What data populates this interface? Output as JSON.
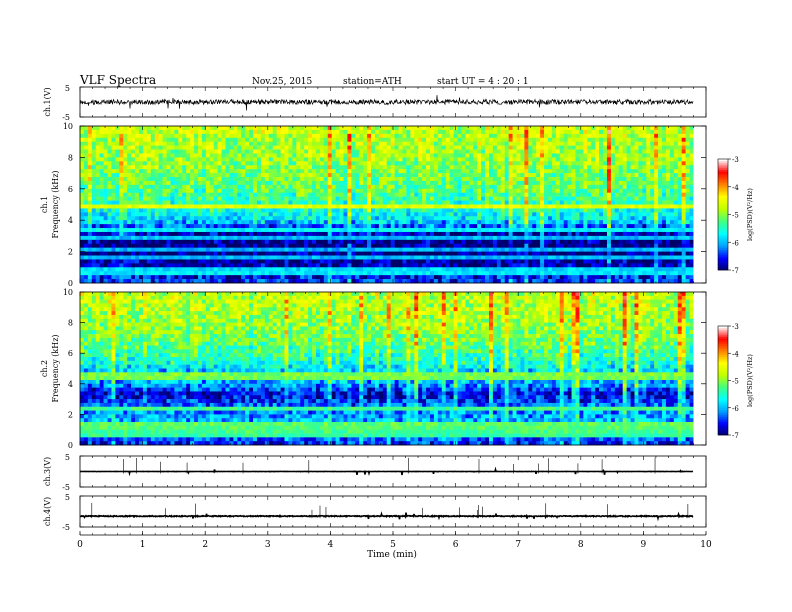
{
  "header": {
    "title": "VLF  Spectra",
    "date": "Nov.25, 2015",
    "station": "station=ATH",
    "start": "start  UT  =   4  : 20 : 1"
  },
  "chart_data": [
    {
      "type": "line",
      "panel": "ch1-waveform",
      "ylabel": "ch.1(V)",
      "ylim": [
        -5,
        5
      ],
      "y_ticks": [
        "5",
        "-5"
      ],
      "x_range_min": [
        0,
        9.8
      ],
      "baseline": 0,
      "noise_amplitude": 0.8
    },
    {
      "type": "heatmap",
      "panel": "ch1-spectrogram",
      "ylabel_channel": "ch.1",
      "ylabel": "Frequency  (kHz)",
      "ylim": [
        0,
        10
      ],
      "y_ticks": [
        "0",
        "2",
        "4",
        "6",
        "8",
        "10"
      ],
      "color_scale_label": "log(PSD)(V²/Hz)",
      "color_range": [
        -7,
        -3
      ],
      "color_ticks": [
        "-3",
        "-4",
        "-5",
        "-6",
        "-7"
      ],
      "profile_khz_log_psd": [
        [
          0.0,
          -6.4
        ],
        [
          0.5,
          -6.6
        ],
        [
          1.0,
          -6.8
        ],
        [
          2.0,
          -6.95
        ],
        [
          2.8,
          -6.9
        ],
        [
          3.4,
          -6.6
        ],
        [
          4.0,
          -5.8
        ],
        [
          5.0,
          -5.4
        ],
        [
          6.0,
          -5.2
        ],
        [
          8.0,
          -4.9
        ],
        [
          10.0,
          -4.7
        ]
      ]
    },
    {
      "type": "heatmap",
      "panel": "ch2-spectrogram",
      "ylabel_channel": "ch.2",
      "ylabel": "Frequency  (kHz)",
      "ylim": [
        0,
        10
      ],
      "y_ticks": [
        "0",
        "2",
        "4",
        "6",
        "8",
        "10"
      ],
      "color_scale_label": "log(PSD)(V²/Hz)",
      "color_range": [
        -7,
        -3
      ],
      "color_ticks": [
        "-3",
        "-4",
        "-5",
        "-6",
        "-7"
      ],
      "profile_khz_log_psd": [
        [
          0.0,
          -6.5
        ],
        [
          0.7,
          -6.2
        ],
        [
          1.5,
          -6.0
        ],
        [
          2.5,
          -6.2
        ],
        [
          3.3,
          -6.7
        ],
        [
          4.0,
          -6.0
        ],
        [
          4.8,
          -5.9
        ],
        [
          5.5,
          -5.5
        ],
        [
          6.5,
          -5.2
        ],
        [
          8.0,
          -4.9
        ],
        [
          10.0,
          -4.7
        ]
      ]
    },
    {
      "type": "line",
      "panel": "ch3-waveform",
      "ylabel": "ch.3(V)",
      "ylim": [
        -5,
        5
      ],
      "y_ticks": [
        "5",
        "-5"
      ],
      "x_range_min": [
        0,
        9.8
      ],
      "baseline": 0,
      "noise_amplitude": 0.05
    },
    {
      "type": "line",
      "panel": "ch4-waveform",
      "ylabel": "ch.4(V)",
      "ylim": [
        -5,
        5
      ],
      "y_ticks": [
        "5",
        "-5"
      ],
      "x_range_min": [
        0,
        9.8
      ],
      "baseline": -1.5,
      "noise_amplitude": 0.15
    }
  ],
  "xaxis": {
    "label": "Time  (min)",
    "range": [
      0,
      10
    ],
    "ticks": [
      "0",
      "1",
      "2",
      "3",
      "4",
      "5",
      "6",
      "7",
      "8",
      "9",
      "10"
    ]
  },
  "colors": {
    "scale": [
      "#000066",
      "#0000ff",
      "#00a0ff",
      "#00ffff",
      "#40ff80",
      "#c0ff00",
      "#ffff00",
      "#ff8000",
      "#ff0000",
      "#ffffff"
    ]
  }
}
